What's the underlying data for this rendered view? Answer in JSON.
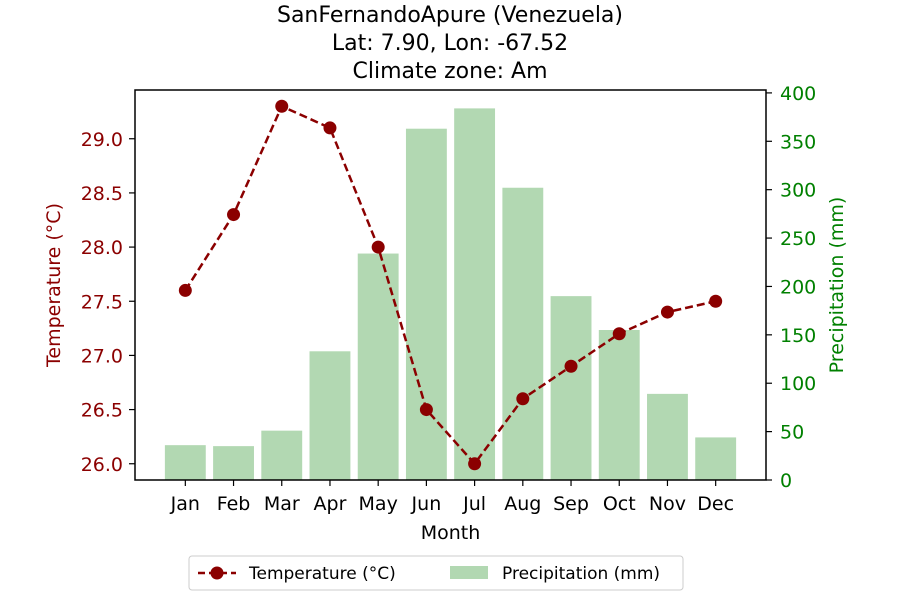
{
  "chart_data": {
    "type": "bar+line",
    "title_lines": [
      "SanFernandoApure (Venezuela)",
      "Lat: 7.90, Lon: -67.52",
      "Climate zone: Am"
    ],
    "xlabel": "Month",
    "categories": [
      "Jan",
      "Feb",
      "Mar",
      "Apr",
      "May",
      "Jun",
      "Jul",
      "Aug",
      "Sep",
      "Oct",
      "Nov",
      "Dec"
    ],
    "temperature": {
      "name": "Temperature (°C)",
      "axis_label": "Temperature (°C)",
      "values": [
        27.6,
        28.3,
        29.3,
        29.1,
        28.0,
        26.5,
        26.0,
        26.6,
        26.9,
        27.2,
        27.4,
        27.5
      ],
      "ylim": [
        25.85,
        29.45
      ],
      "ticks": [
        "26.0",
        "26.5",
        "27.0",
        "27.5",
        "28.0",
        "28.5",
        "29.0"
      ],
      "color": "#8b0000"
    },
    "precipitation": {
      "name": "Precipitation (mm)",
      "axis_label": "Precipitation (mm)",
      "values": [
        36,
        35,
        51,
        133,
        234,
        363,
        384,
        302,
        190,
        155,
        89,
        44
      ],
      "ylim": [
        0,
        403
      ],
      "ticks": [
        "0",
        "50",
        "100",
        "150",
        "200",
        "250",
        "300",
        "350",
        "400"
      ],
      "color": "#008000",
      "bar_color": "#b2d8b2"
    },
    "legend": {
      "position": "bottom-center",
      "temperature_label": "Temperature (°C)",
      "precipitation_label": "Precipitation (mm)"
    }
  }
}
